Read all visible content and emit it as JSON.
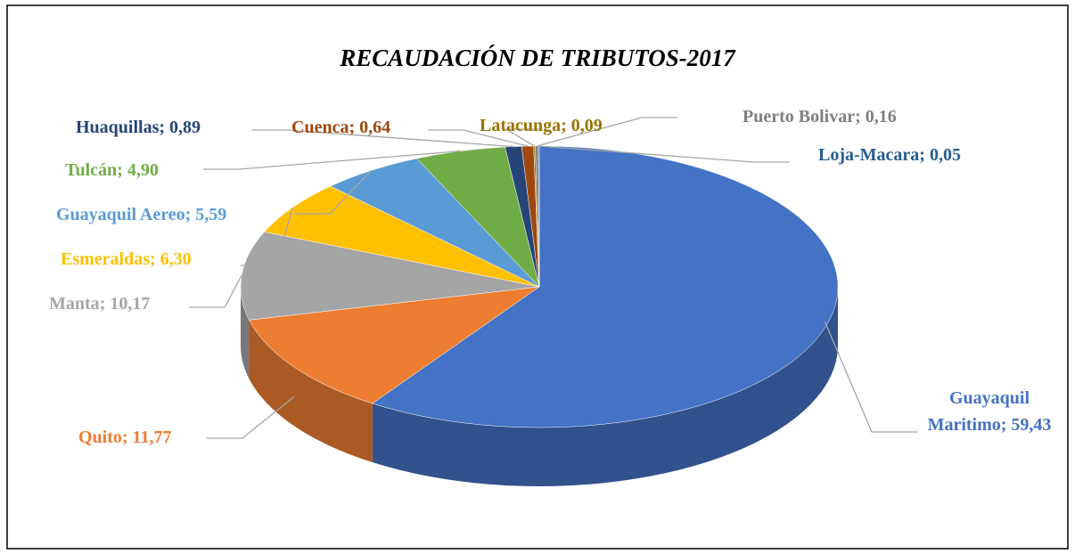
{
  "chart_data": {
    "type": "pie",
    "title": "RECAUDACIÓN DE TRIBUTOS-2017",
    "values": [
      59.43,
      11.77,
      10.17,
      6.3,
      5.59,
      4.9,
      0.89,
      0.64,
      0.09,
      0.16,
      0.05
    ],
    "value_labels": [
      "Guayaquil Maritimo; 59,43",
      "Quito; 11,77",
      "Manta; 10,17",
      "Esmeraldas; 6,30",
      "Guayaquil Aereo; 5,59",
      "Tulcán; 4,90",
      "Huaquillas; 0,89",
      "Cuenca; 0,64",
      "Latacunga; 0,09",
      "Puerto Bolivar; 0,16",
      "Loja-Macara; 0,05"
    ],
    "colors": [
      "#4472c4",
      "#ed7d31",
      "#a5a5a5",
      "#ffc000",
      "#5b9bd5",
      "#70ad47",
      "#264478",
      "#9e480e",
      "#997300",
      "#7f7f7f",
      "#255e91"
    ]
  }
}
